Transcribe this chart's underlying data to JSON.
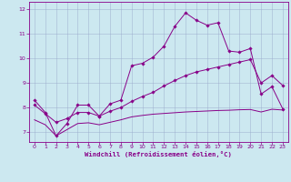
{
  "xlabel": "Windchill (Refroidissement éolien,°C)",
  "bg_color": "#cce8f0",
  "line_color": "#880088",
  "grid_color": "#99aacc",
  "xlim": [
    -0.5,
    23.5
  ],
  "ylim": [
    6.6,
    12.3
  ],
  "xticks": [
    0,
    1,
    2,
    3,
    4,
    5,
    6,
    7,
    8,
    9,
    10,
    11,
    12,
    13,
    14,
    15,
    16,
    17,
    18,
    19,
    20,
    21,
    22,
    23
  ],
  "yticks": [
    7,
    8,
    9,
    10,
    11,
    12
  ],
  "line1_x": [
    0,
    1,
    2,
    3,
    4,
    5,
    6,
    7,
    8,
    9,
    10,
    11,
    12,
    13,
    14,
    15,
    16,
    17,
    18,
    19,
    20,
    21,
    22,
    23
  ],
  "line1_y": [
    8.3,
    7.8,
    6.85,
    7.35,
    8.1,
    8.1,
    7.65,
    8.15,
    8.3,
    9.7,
    9.8,
    10.05,
    10.5,
    11.3,
    11.85,
    11.55,
    11.35,
    11.45,
    10.3,
    10.25,
    10.4,
    8.55,
    8.85,
    7.95
  ],
  "line2_x": [
    0,
    1,
    2,
    3,
    4,
    5,
    6,
    7,
    8,
    9,
    10,
    11,
    12,
    13,
    14,
    15,
    16,
    17,
    18,
    19,
    20,
    21,
    22,
    23
  ],
  "line2_y": [
    8.1,
    7.75,
    7.4,
    7.55,
    7.8,
    7.8,
    7.65,
    7.85,
    8.0,
    8.25,
    8.45,
    8.62,
    8.88,
    9.1,
    9.3,
    9.45,
    9.55,
    9.65,
    9.75,
    9.85,
    9.95,
    9.0,
    9.3,
    8.9
  ],
  "line3_x": [
    0,
    1,
    2,
    3,
    4,
    5,
    6,
    7,
    8,
    9,
    10,
    11,
    12,
    13,
    14,
    15,
    16,
    17,
    18,
    19,
    20,
    21,
    22,
    23
  ],
  "line3_y": [
    7.5,
    7.3,
    6.85,
    7.1,
    7.35,
    7.38,
    7.3,
    7.4,
    7.5,
    7.62,
    7.68,
    7.73,
    7.76,
    7.79,
    7.82,
    7.84,
    7.86,
    7.88,
    7.89,
    7.91,
    7.92,
    7.82,
    7.93,
    7.9
  ]
}
